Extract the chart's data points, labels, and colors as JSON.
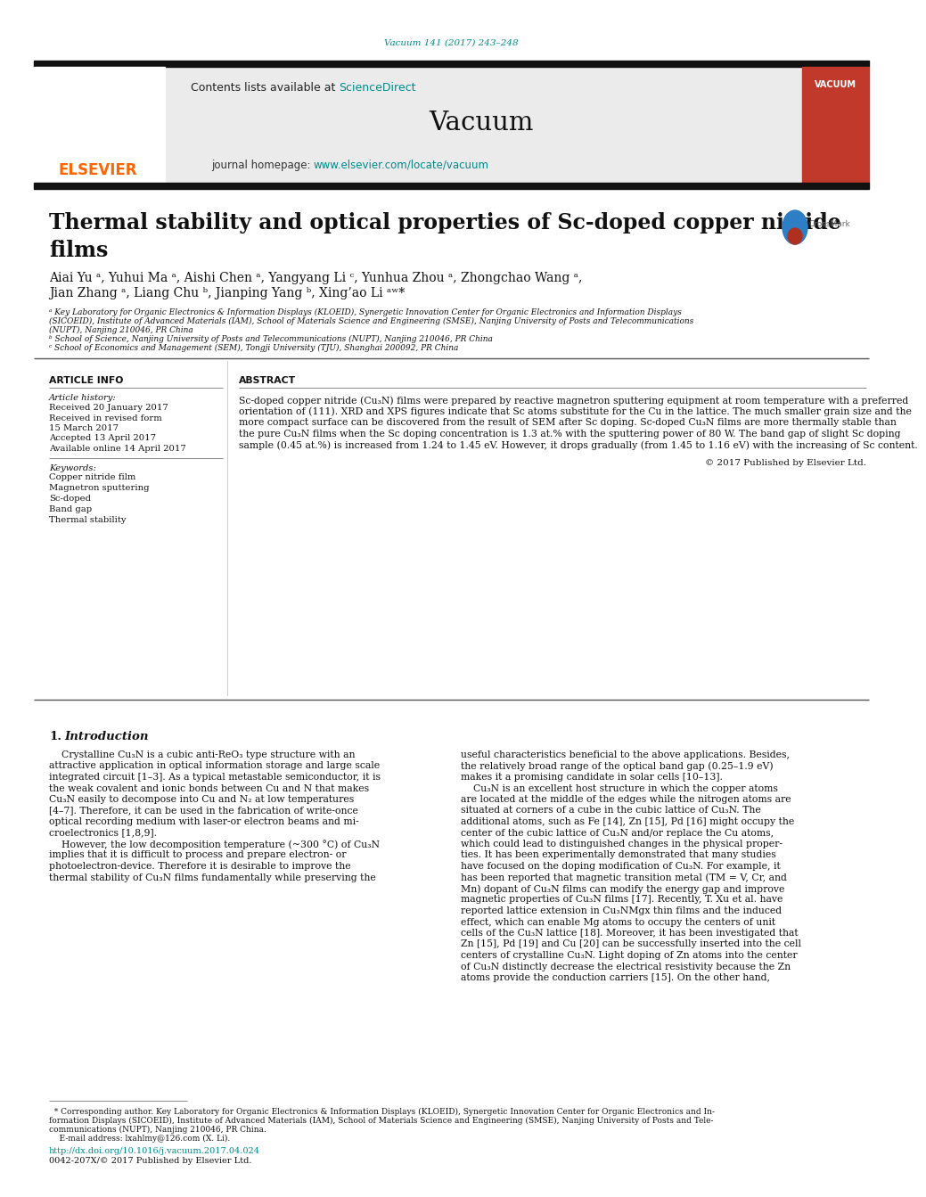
{
  "journal_ref": "Vacuum 141 (2017) 243–248",
  "journal_ref_color": "#008B8B",
  "journal_name": "Vacuum",
  "contents_text": "Contents lists available at ",
  "sciencedirect_text": "ScienceDirect",
  "sciencedirect_color": "#008B8B",
  "homepage_text": "journal homepage: ",
  "homepage_url": "www.elsevier.com/locate/vacuum",
  "homepage_url_color": "#008B8B",
  "elsevier_color": "#FF6600",
  "title_line1": "Thermal stability and optical properties of Sc-doped copper nitride",
  "title_line2": "films",
  "author_line1": "Aiai Yu ᵃ, Yuhui Ma ᵃ, Aishi Chen ᵃ, Yangyang Li ᶜ, Yunhua Zhou ᵃ, Zhongchao Wang ᵃ,",
  "author_line2": "Jian Zhang ᵃ, Liang Chu ᵇ, Jianping Yang ᵇ, Xing’ao Li ᵃʷ*",
  "affil_a_line1": "ᵃ Key Laboratory for Organic Electronics & Information Displays (KLOEID), Synergetic Innovation Center for Organic Electronics and Information Displays",
  "affil_a_line2": "(SICOEID), Institute of Advanced Materials (IAM), School of Materials Science and Engineering (SMSE), Nanjing University of Posts and Telecommunications",
  "affil_a_line3": "(NUPT), Nanjing 210046, PR China",
  "affil_b": "ᵇ School of Science, Nanjing University of Posts and Telecommunications (NUPT), Nanjing 210046, PR China",
  "affil_c": "ᶜ School of Economics and Management (SEM), Tongji University (TJU), Shanghai 200092, PR China",
  "article_info_title": "ARTICLE INFO",
  "abstract_title": "ABSTRACT",
  "article_history_label": "Article history:",
  "hist_line1": "Received 20 January 2017",
  "hist_line2": "Received in revised form",
  "hist_line3": "15 March 2017",
  "hist_line4": "Accepted 13 April 2017",
  "hist_line5": "Available online 14 April 2017",
  "keywords_label": "Keywords:",
  "kw1": "Copper nitride film",
  "kw2": "Magnetron sputtering",
  "kw3": "Sc-doped",
  "kw4": "Band gap",
  "kw5": "Thermal stability",
  "abstract_lines": [
    "Sc-doped copper nitride (Cu₃N) films were prepared by reactive magnetron sputtering equipment at room temperature with a preferred",
    "orientation of (111). XRD and XPS figures indicate that Sc atoms substitute for the Cu in the lattice. The much smaller grain size and the",
    "more compact surface can be discovered from the result of SEM after Sc doping. Sc-doped Cu₃N films are more thermally stable than",
    "the pure Cu₃N films when the Sc doping concentration is 1.3 at.% with the sputtering power of 80 W. The band gap of slight Sc doping",
    "sample (0.45 at.%) is increased from 1.24 to 1.45 eV. However, it drops gradually (from 1.45 to 1.16 eV) with the increasing of Sc content."
  ],
  "copyright_text": "© 2017 Published by Elsevier Ltd.",
  "section1_number": "1.",
  "section1_title": "Introduction",
  "intro_c1_lines": [
    "    Crystalline Cu₃N is a cubic anti-ReO₃ type structure with an",
    "attractive application in optical information storage and large scale",
    "integrated circuit [1–3]. As a typical metastable semiconductor, it is",
    "the weak covalent and ionic bonds between Cu and N that makes",
    "Cu₃N easily to decompose into Cu and N₂ at low temperatures",
    "[4–7]. Therefore, it can be used in the fabrication of write-once",
    "optical recording medium with laser-or electron beams and mi-",
    "croelectronics [1,8,9].",
    "    However, the low decomposition temperature (~300 °C) of Cu₃N",
    "implies that it is difficult to process and prepare electron- or",
    "photoelectron-device. Therefore it is desirable to improve the",
    "thermal stability of Cu₃N films fundamentally while preserving the"
  ],
  "intro_c2_lines": [
    "useful characteristics beneficial to the above applications. Besides,",
    "the relatively broad range of the optical band gap (0.25–1.9 eV)",
    "makes it a promising candidate in solar cells [10–13].",
    "    Cu₃N is an excellent host structure in which the copper atoms",
    "are located at the middle of the edges while the nitrogen atoms are",
    "situated at corners of a cube in the cubic lattice of Cu₃N. The",
    "additional atoms, such as Fe [14], Zn [15], Pd [16] might occupy the",
    "center of the cubic lattice of Cu₃N and/or replace the Cu atoms,",
    "which could lead to distinguished changes in the physical proper-",
    "ties. It has been experimentally demonstrated that many studies",
    "have focused on the doping modification of Cu₃N. For example, it",
    "has been reported that magnetic transition metal (TM = V, Cr, and",
    "Mn) dopant of Cu₃N films can modify the energy gap and improve",
    "magnetic properties of Cu₃N films [17]. Recently, T. Xu et al. have",
    "reported lattice extension in Cu₃NMgx thin films and the induced",
    "effect, which can enable Mg atoms to occupy the centers of unit",
    "cells of the Cu₃N lattice [18]. Moreover, it has been investigated that",
    "Zn [15], Pd [19] and Cu [20] can be successfully inserted into the cell",
    "centers of crystalline Cu₃N. Light doping of Zn atoms into the center",
    "of Cu₃N distinctly decrease the electrical resistivity because the Zn",
    "atoms provide the conduction carriers [15]. On the other hand,"
  ],
  "footnote_lines": [
    "  * Corresponding author. Key Laboratory for Organic Electronics & Information Displays (KLOEID), Synergetic Innovation Center for Organic Electronics and In-",
    "formation Displays (SICOEID), Institute of Advanced Materials (IAM), School of Materials Science and Engineering (SMSE), Nanjing University of Posts and Tele-",
    "communications (NUPT), Nanjing 210046, PR China.",
    "    E-mail address: lxahlmy@126.com (X. Li)."
  ],
  "doi_text": "http://dx.doi.org/10.1016/j.vacuum.2017.04.024",
  "doi_color": "#008B8B",
  "issn_text": "0042-207X/© 2017 Published by Elsevier Ltd.",
  "bg_color": "#FFFFFF",
  "header_bg": "#EBEBEB",
  "black_bar_color": "#111111",
  "text_color": "#000000"
}
